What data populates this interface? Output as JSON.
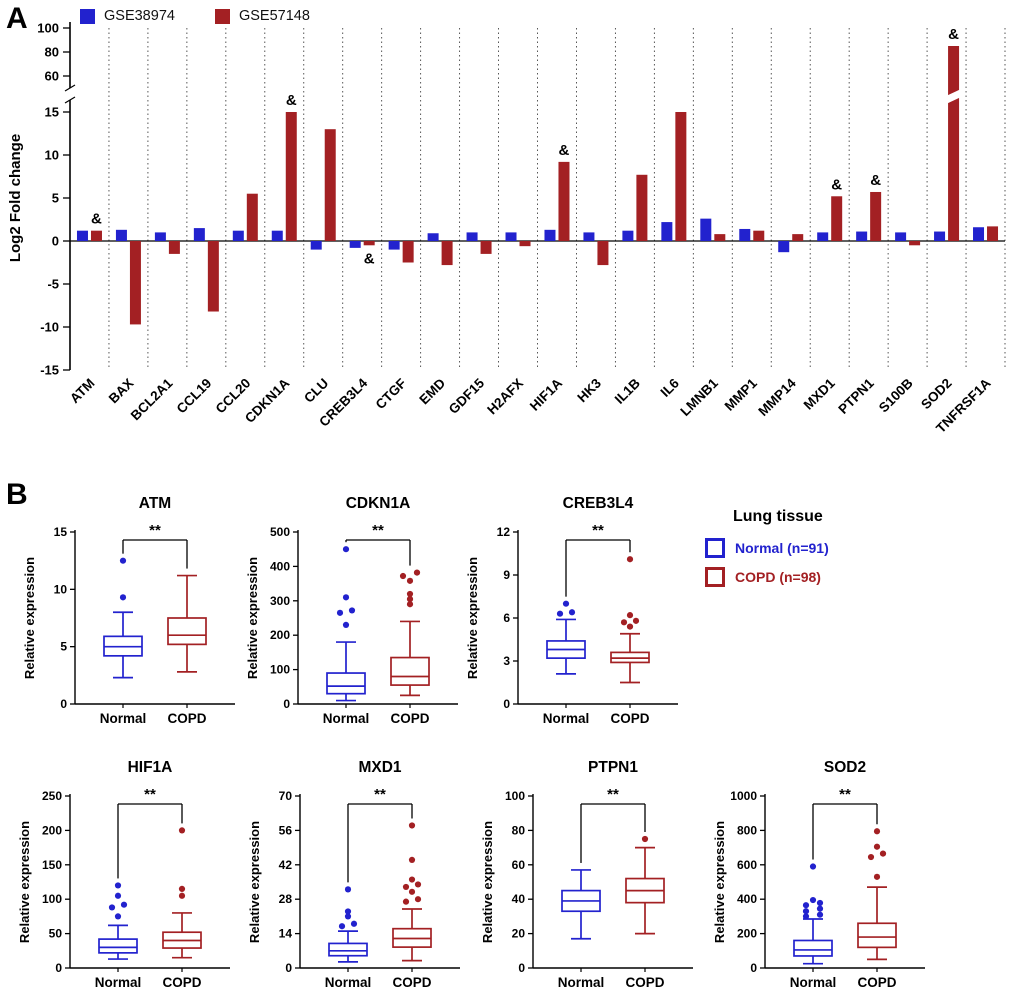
{
  "panel_a": {
    "label": "A",
    "legend": [
      {
        "name": "GSE38974",
        "color": "#2222CE"
      },
      {
        "name": "GSE57148",
        "color": "#A32023"
      }
    ],
    "chart_data": {
      "type": "bar",
      "ylabel": "Log2 Fold change",
      "categories": [
        "ATM",
        "BAX",
        "BCL2A1",
        "CCL19",
        "CCL20",
        "CDKN1A",
        "CLU",
        "CREB3L4",
        "CTGF",
        "EMD",
        "GDF15",
        "H2AFX",
        "HIF1A",
        "HK3",
        "IL1B",
        "IL6",
        "LMNB1",
        "MMP1",
        "MMP14",
        "MXD1",
        "PTPN1",
        "S100B",
        "SOD2",
        "TNFRSF1A"
      ],
      "series": [
        {
          "name": "GSE38974",
          "color": "#2222CE",
          "values": [
            1.2,
            1.3,
            1.0,
            1.5,
            1.2,
            1.2,
            -1.0,
            -0.8,
            -1.0,
            0.9,
            1.0,
            1.0,
            1.3,
            1.0,
            1.2,
            2.2,
            2.6,
            1.4,
            -1.3,
            1.0,
            1.1,
            1.0,
            1.1,
            1.6
          ]
        },
        {
          "name": "GSE57148",
          "color": "#A32023",
          "values": [
            1.2,
            -9.7,
            -1.5,
            -8.2,
            5.5,
            15.0,
            13.0,
            -0.5,
            -2.5,
            -2.8,
            -1.5,
            -0.6,
            9.2,
            -2.8,
            7.7,
            15.0,
            0.8,
            1.2,
            0.8,
            5.2,
            5.7,
            -0.5,
            85.0,
            1.7
          ]
        }
      ],
      "y_axis": {
        "lower_ticks": [
          -15,
          -10,
          -5,
          0,
          5,
          10,
          15
        ],
        "upper_ticks": [
          60,
          80,
          100
        ],
        "break": true,
        "lower_range": [
          -15,
          15
        ],
        "upper_range": [
          60,
          100
        ]
      },
      "annotation_symbol": "&",
      "annotated_categories": [
        "ATM",
        "CDKN1A",
        "CREB3L4",
        "HIF1A",
        "MXD1",
        "PTPN1",
        "SOD2"
      ]
    }
  },
  "panel_b": {
    "label": "B",
    "ylabel": "Relative expression",
    "groups": [
      "Normal",
      "COPD"
    ],
    "significance": "**",
    "colors": {
      "normal": "#2222CE",
      "copd": "#A32023"
    },
    "legend": {
      "title": "Lung tissue",
      "items": [
        {
          "label": "Normal (n=91)",
          "color": "#2222CE"
        },
        {
          "label": "COPD (n=98)",
          "color": "#A32023"
        }
      ]
    },
    "chart_data": [
      {
        "type": "box",
        "title": "ATM",
        "ylim": [
          0,
          15
        ],
        "yticks": [
          0,
          5,
          10,
          15
        ],
        "normal": {
          "whisker_low": 2.3,
          "q1": 4.2,
          "median": 5.0,
          "q3": 5.9,
          "whisker_high": 8.0,
          "outliers": [
            [
              9.3,
              0
            ],
            [
              12.5,
              0
            ]
          ]
        },
        "copd": {
          "whisker_low": 2.8,
          "q1": 5.2,
          "median": 6.0,
          "q3": 7.5,
          "whisker_high": 11.2,
          "outliers": []
        }
      },
      {
        "type": "box",
        "title": "CDKN1A",
        "ylim": [
          0,
          500
        ],
        "yticks": [
          0,
          100,
          200,
          300,
          400,
          500
        ],
        "normal": {
          "whisker_low": 10,
          "q1": 30,
          "median": 52,
          "q3": 90,
          "whisker_high": 180,
          "outliers": [
            [
              230,
              0
            ],
            [
              265,
              -6
            ],
            [
              272,
              6
            ],
            [
              310,
              0
            ],
            [
              450,
              0
            ]
          ]
        },
        "copd": {
          "whisker_low": 25,
          "q1": 55,
          "median": 80,
          "q3": 135,
          "whisker_high": 240,
          "outliers": [
            [
              290,
              0
            ],
            [
              305,
              0
            ],
            [
              320,
              0
            ],
            [
              358,
              0
            ],
            [
              372,
              -7
            ],
            [
              382,
              7
            ]
          ]
        }
      },
      {
        "type": "box",
        "title": "CREB3L4",
        "ylim": [
          0,
          12
        ],
        "yticks": [
          0,
          3,
          6,
          9,
          12
        ],
        "normal": {
          "whisker_low": 2.1,
          "q1": 3.2,
          "median": 3.8,
          "q3": 4.4,
          "whisker_high": 5.9,
          "outliers": [
            [
              6.3,
              -6
            ],
            [
              6.4,
              6
            ],
            [
              7.0,
              0
            ]
          ]
        },
        "copd": {
          "whisker_low": 1.5,
          "q1": 2.9,
          "median": 3.2,
          "q3": 3.6,
          "whisker_high": 4.9,
          "outliers": [
            [
              5.4,
              0
            ],
            [
              5.7,
              -6
            ],
            [
              5.8,
              6
            ],
            [
              6.2,
              0
            ],
            [
              10.1,
              0
            ]
          ]
        }
      },
      {
        "type": "box",
        "title": "HIF1A",
        "ylim": [
          0,
          250
        ],
        "yticks": [
          0,
          50,
          100,
          150,
          200,
          250
        ],
        "normal": {
          "whisker_low": 13,
          "q1": 22,
          "median": 30,
          "q3": 42,
          "whisker_high": 62,
          "outliers": [
            [
              75,
              0
            ],
            [
              88,
              -6
            ],
            [
              92,
              6
            ],
            [
              105,
              0
            ],
            [
              120,
              0
            ]
          ]
        },
        "copd": {
          "whisker_low": 15,
          "q1": 29,
          "median": 40,
          "q3": 52,
          "whisker_high": 80,
          "outliers": [
            [
              105,
              0
            ],
            [
              115,
              0
            ],
            [
              200,
              0
            ]
          ]
        }
      },
      {
        "type": "box",
        "title": "MXD1",
        "ylim": [
          0,
          70
        ],
        "yticks": [
          0,
          14,
          28,
          42,
          56,
          70
        ],
        "normal": {
          "whisker_low": 2.5,
          "q1": 5,
          "median": 7,
          "q3": 10,
          "whisker_high": 15,
          "outliers": [
            [
              17,
              -6
            ],
            [
              18,
              6
            ],
            [
              21,
              0
            ],
            [
              23,
              0
            ],
            [
              32,
              0
            ]
          ]
        },
        "copd": {
          "whisker_low": 3,
          "q1": 8.5,
          "median": 12,
          "q3": 16,
          "whisker_high": 24,
          "outliers": [
            [
              27,
              -6
            ],
            [
              28,
              6
            ],
            [
              31,
              0
            ],
            [
              33,
              -6
            ],
            [
              34,
              6
            ],
            [
              36,
              0
            ],
            [
              44,
              0
            ],
            [
              58,
              0
            ]
          ]
        }
      },
      {
        "type": "box",
        "title": "PTPN1",
        "ylim": [
          0,
          100
        ],
        "yticks": [
          0,
          20,
          40,
          60,
          80,
          100
        ],
        "normal": {
          "whisker_low": 17,
          "q1": 33,
          "median": 39,
          "q3": 45,
          "whisker_high": 57,
          "outliers": []
        },
        "copd": {
          "whisker_low": 20,
          "q1": 38,
          "median": 45,
          "q3": 52,
          "whisker_high": 70,
          "outliers": [
            [
              75,
              0
            ]
          ]
        }
      },
      {
        "type": "box",
        "title": "SOD2",
        "ylim": [
          0,
          1000
        ],
        "yticks": [
          0,
          200,
          400,
          600,
          800,
          1000
        ],
        "normal": {
          "whisker_low": 25,
          "q1": 70,
          "median": 105,
          "q3": 160,
          "whisker_high": 285,
          "outliers": [
            [
              300,
              -7
            ],
            [
              310,
              7
            ],
            [
              330,
              -7
            ],
            [
              345,
              7
            ],
            [
              365,
              -7
            ],
            [
              378,
              7
            ],
            [
              395,
              0
            ],
            [
              590,
              0
            ]
          ]
        },
        "copd": {
          "whisker_low": 50,
          "q1": 120,
          "median": 180,
          "q3": 260,
          "whisker_high": 470,
          "outliers": [
            [
              530,
              0
            ],
            [
              645,
              -6
            ],
            [
              665,
              6
            ],
            [
              705,
              0
            ],
            [
              795,
              0
            ]
          ]
        }
      }
    ]
  }
}
